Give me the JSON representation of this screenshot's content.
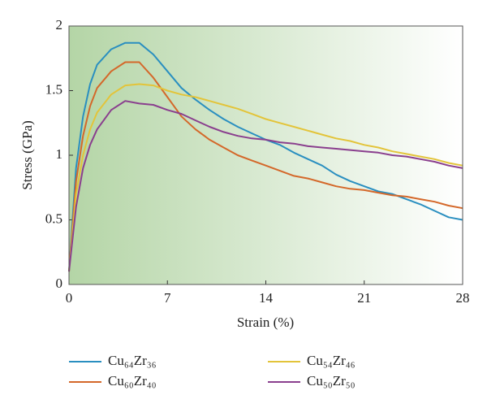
{
  "chart_data": {
    "type": "line",
    "x_label": "Strain (%)",
    "y_label": "Stress (GPa)",
    "x": [
      0,
      0.5,
      1,
      1.5,
      2,
      3,
      4,
      5,
      6,
      7,
      8,
      9,
      10,
      11,
      12,
      13,
      14,
      15,
      16,
      17,
      18,
      19,
      20,
      21,
      22,
      23,
      24,
      25,
      26,
      27,
      28
    ],
    "series": [
      {
        "name": "Cu₆₄Zr₃₆",
        "color": "#2a8fc0",
        "values": [
          0.1,
          0.9,
          1.3,
          1.55,
          1.7,
          1.82,
          1.87,
          1.87,
          1.78,
          1.65,
          1.52,
          1.43,
          1.35,
          1.28,
          1.22,
          1.17,
          1.12,
          1.08,
          1.02,
          0.97,
          0.92,
          0.85,
          0.8,
          0.76,
          0.72,
          0.7,
          0.66,
          0.62,
          0.57,
          0.52,
          0.5
        ]
      },
      {
        "name": "Cu₆₀Zr₄₀",
        "color": "#d4682a",
        "values": [
          0.1,
          0.8,
          1.15,
          1.38,
          1.52,
          1.65,
          1.72,
          1.72,
          1.6,
          1.45,
          1.3,
          1.2,
          1.12,
          1.06,
          1.0,
          0.96,
          0.92,
          0.88,
          0.84,
          0.82,
          0.79,
          0.76,
          0.74,
          0.73,
          0.71,
          0.69,
          0.68,
          0.66,
          0.64,
          0.61,
          0.59
        ]
      },
      {
        "name": "Cu₅₄Zr₄₆",
        "color": "#e3c43a",
        "values": [
          0.1,
          0.7,
          1.0,
          1.2,
          1.33,
          1.47,
          1.54,
          1.55,
          1.54,
          1.5,
          1.47,
          1.45,
          1.42,
          1.39,
          1.36,
          1.32,
          1.28,
          1.25,
          1.22,
          1.19,
          1.16,
          1.13,
          1.11,
          1.08,
          1.06,
          1.03,
          1.01,
          0.99,
          0.97,
          0.94,
          0.92
        ]
      },
      {
        "name": "Cu₅₀Zr₅₀",
        "color": "#8a3f8e",
        "values": [
          0.1,
          0.6,
          0.9,
          1.08,
          1.2,
          1.35,
          1.42,
          1.4,
          1.39,
          1.35,
          1.32,
          1.27,
          1.22,
          1.18,
          1.15,
          1.13,
          1.12,
          1.1,
          1.09,
          1.07,
          1.06,
          1.05,
          1.04,
          1.03,
          1.02,
          1.0,
          0.99,
          0.97,
          0.95,
          0.92,
          0.9
        ]
      }
    ],
    "xlim": [
      0,
      28
    ],
    "xticks": [
      0,
      7,
      14,
      21,
      28
    ],
    "ylim": [
      0,
      2
    ],
    "yticks": [
      0,
      0.5,
      1,
      1.5,
      2
    ],
    "legend": "bottom"
  }
}
